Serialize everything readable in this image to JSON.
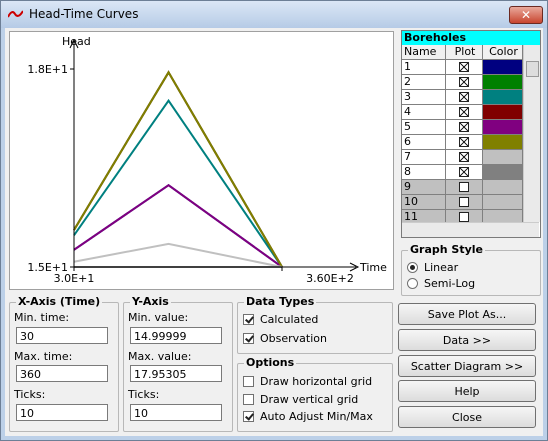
{
  "window": {
    "title": "Head-Time Curves"
  },
  "chart_data": {
    "type": "line",
    "x_label": "Time",
    "y_label": "Head",
    "x": [
      30,
      180,
      360
    ],
    "xlim": [
      30,
      360
    ],
    "xticks": [
      {
        "value": 30,
        "label": "3.0E+1"
      },
      {
        "value": 360,
        "label": "3.60E+2"
      }
    ],
    "ylim": [
      15,
      18
    ],
    "yticks": [
      {
        "value": 15,
        "label": "1.5E+1"
      },
      {
        "value": 18,
        "label": "1.8E+1"
      }
    ],
    "series": [
      {
        "color": "#000080",
        "values": [
          15.26,
          16.24,
          15.0
        ]
      },
      {
        "color": "#008000",
        "values": [
          15.56,
          17.95,
          15.0
        ]
      },
      {
        "color": "#008080",
        "values": [
          15.48,
          17.52,
          15.0
        ]
      },
      {
        "color": "#800000",
        "values": [
          15.56,
          17.95,
          15.0
        ]
      },
      {
        "color": "#800080",
        "values": [
          15.26,
          16.24,
          15.0
        ]
      },
      {
        "color": "#808000",
        "values": [
          15.56,
          17.95,
          15.0
        ]
      },
      {
        "color": "#c0c0c0",
        "values": [
          15.08,
          15.35,
          15.0
        ]
      },
      {
        "color": "#808080",
        "values": [
          15.0,
          15.0,
          15.0
        ]
      }
    ]
  },
  "boreholes": {
    "title": "Boreholes",
    "columns": [
      "Name",
      "Plot",
      "Color"
    ],
    "rows": [
      {
        "name": "1",
        "plot": true,
        "color": "#000080"
      },
      {
        "name": "2",
        "plot": true,
        "color": "#008000"
      },
      {
        "name": "3",
        "plot": true,
        "color": "#008080"
      },
      {
        "name": "4",
        "plot": true,
        "color": "#800000"
      },
      {
        "name": "5",
        "plot": true,
        "color": "#800080"
      },
      {
        "name": "6",
        "plot": true,
        "color": "#808000"
      },
      {
        "name": "7",
        "plot": true,
        "color": "#c0c0c0"
      },
      {
        "name": "8",
        "plot": true,
        "color": "#808080"
      },
      {
        "name": "9",
        "plot": false
      },
      {
        "name": "10",
        "plot": false
      },
      {
        "name": "11",
        "plot": false
      }
    ]
  },
  "graph_style": {
    "title": "Graph Style",
    "options": [
      {
        "label": "Linear",
        "selected": true
      },
      {
        "label": "Semi-Log",
        "selected": false
      }
    ]
  },
  "x_axis": {
    "title": "X-Axis (Time)",
    "min_label": "Min. time:",
    "min": 30,
    "max_label": "Max. time:",
    "max": 360,
    "ticks_label": "Ticks:",
    "ticks": 10
  },
  "y_axis": {
    "title": "Y-Axis",
    "min_label": "Min. value:",
    "min": 14.99999,
    "max_label": "Max. value:",
    "max": 17.95305,
    "ticks_label": "Ticks:",
    "ticks": 10
  },
  "data_types": {
    "title": "Data Types",
    "items": [
      {
        "label": "Calculated",
        "checked": true
      },
      {
        "label": "Observation",
        "checked": true
      }
    ]
  },
  "options": {
    "title": "Options",
    "items": [
      {
        "label": "Draw horizontal grid",
        "checked": false
      },
      {
        "label": "Draw vertical grid",
        "checked": false
      },
      {
        "label": "Auto Adjust Min/Max",
        "checked": true
      }
    ]
  },
  "buttons": [
    "Save Plot As...",
    "Data >>",
    "Scatter Diagram >>",
    "Help",
    "Close"
  ]
}
